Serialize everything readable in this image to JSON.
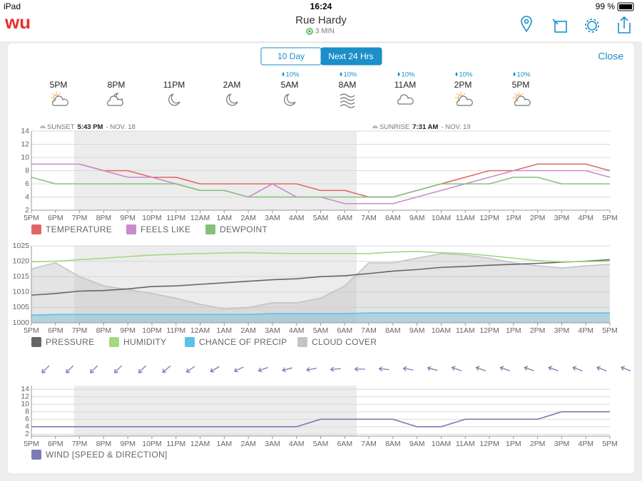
{
  "status_bar": {
    "device": "iPad",
    "time": "16:24",
    "battery": "99 %"
  },
  "header": {
    "logo": "wu",
    "location": "Rue Hardy",
    "updated": "3 MIN"
  },
  "tabs": {
    "options": [
      "10 Day",
      "Next 24 Hrs"
    ],
    "close": "Close"
  },
  "forecast": [
    {
      "time": "5PM"
    },
    {
      "time": "8PM"
    },
    {
      "time": "11PM"
    },
    {
      "time": "2AM"
    },
    {
      "time": "5AM",
      "precip": "10%"
    },
    {
      "time": "8AM",
      "precip": "10%"
    },
    {
      "time": "11AM",
      "precip": "10%"
    },
    {
      "time": "2PM",
      "precip": "10%"
    },
    {
      "time": "5PM",
      "precip": "10%"
    }
  ],
  "annotations": [
    {
      "label": "SUNSET",
      "time": "5:43 PM",
      "date": "- NOV. 18"
    },
    {
      "label": "SUNRISE",
      "time": "7:31 AM",
      "date": "- NOV. 19"
    }
  ],
  "chart_data": [
    {
      "type": "line",
      "categories": [
        "5PM",
        "6PM",
        "7PM",
        "8PM",
        "9PM",
        "10PM",
        "11PM",
        "12AM",
        "1AM",
        "2AM",
        "3AM",
        "4AM",
        "5AM",
        "6AM",
        "7AM",
        "8AM",
        "9AM",
        "10AM",
        "11AM",
        "12PM",
        "1PM",
        "2PM",
        "3PM",
        "4PM",
        "5PM"
      ],
      "series": [
        {
          "name": "TEMPERATURE",
          "color": "#e06666",
          "values": [
            9,
            9,
            9,
            8,
            8,
            7,
            7,
            6,
            6,
            6,
            6,
            6,
            5,
            5,
            4,
            4,
            5,
            6,
            7,
            8,
            8,
            9,
            9,
            9,
            8
          ]
        },
        {
          "name": "FEELS LIKE",
          "color": "#c98bc9",
          "values": [
            9,
            9,
            9,
            8,
            7,
            7,
            6,
            5,
            5,
            4,
            6,
            4,
            4,
            3,
            3,
            3,
            4,
            5,
            6,
            7,
            8,
            8,
            8,
            8,
            7
          ]
        },
        {
          "name": "DEWPOINT",
          "color": "#86c07c",
          "values": [
            7,
            6,
            6,
            6,
            6,
            6,
            6,
            5,
            5,
            4,
            4,
            4,
            4,
            4,
            4,
            4,
            5,
            6,
            6,
            6,
            7,
            7,
            6,
            6,
            6
          ]
        }
      ],
      "ylim": [
        2,
        14
      ],
      "yticks": [
        2,
        4,
        6,
        8,
        10,
        12,
        14
      ],
      "grid": true
    },
    {
      "type": "line",
      "categories": [
        "5PM",
        "6PM",
        "7PM",
        "8PM",
        "9PM",
        "10PM",
        "11PM",
        "12AM",
        "1AM",
        "2AM",
        "3AM",
        "4AM",
        "5AM",
        "6AM",
        "7AM",
        "8AM",
        "9AM",
        "10AM",
        "11AM",
        "12PM",
        "1PM",
        "2PM",
        "3PM",
        "4PM",
        "5PM"
      ],
      "series": [
        {
          "name": "PRESSURE",
          "color": "#666666",
          "values": [
            1009,
            1009.5,
            1010.3,
            1010.5,
            1011,
            1011.8,
            1012,
            1012.5,
            1013,
            1013.5,
            1014,
            1014.3,
            1015,
            1015.3,
            1016,
            1016.8,
            1017.3,
            1018,
            1018.3,
            1018.7,
            1019,
            1019.3,
            1019.7,
            1020,
            1020.5
          ]
        },
        {
          "name": "HUMIDITY",
          "color": "#a6d87f",
          "values": [
            1019.8,
            1020,
            1020.5,
            1021,
            1021.5,
            1022,
            1022.3,
            1022.5,
            1022.7,
            1022.8,
            1022.6,
            1022.5,
            1022.5,
            1022.5,
            1022.5,
            1023,
            1023.2,
            1022.8,
            1022.5,
            1021.8,
            1021,
            1020.2,
            1019.8,
            1019.9,
            1020
          ]
        },
        {
          "name": "CHANCE OF PRECIP",
          "color": "#5bc2e7",
          "fill": true,
          "values": [
            1002.5,
            1002.7,
            1002.7,
            1002.7,
            1002.7,
            1002.7,
            1002.7,
            1002.7,
            1002.7,
            1002.7,
            1003,
            1003,
            1003,
            1003,
            1003.2,
            1003.2,
            1003.2,
            1003.2,
            1003.2,
            1003.2,
            1003.2,
            1003.2,
            1003.2,
            1003.2,
            1003.2
          ]
        },
        {
          "name": "CLOUD COVER",
          "color": "#c4c4c4",
          "fill": true,
          "values": [
            1017.5,
            1019.5,
            1015,
            1012,
            1010.8,
            1009.5,
            1008,
            1006,
            1004.5,
            1005,
            1006.5,
            1006.5,
            1008,
            1012,
            1019.5,
            1019.5,
            1021,
            1022.5,
            1022,
            1021,
            1019.5,
            1018.5,
            1017.8,
            1018.5,
            1019
          ]
        }
      ],
      "ylim": [
        1000,
        1025
      ],
      "yticks": [
        1000,
        1005,
        1010,
        1015,
        1020,
        1025
      ],
      "grid": true
    },
    {
      "type": "line",
      "categories": [
        "5PM",
        "6PM",
        "7PM",
        "8PM",
        "9PM",
        "10PM",
        "11PM",
        "12AM",
        "1AM",
        "2AM",
        "3AM",
        "4AM",
        "5AM",
        "6AM",
        "7AM",
        "8AM",
        "9AM",
        "10AM",
        "11AM",
        "12PM",
        "1PM",
        "2PM",
        "3PM",
        "4PM",
        "5PM"
      ],
      "series": [
        {
          "name": "WIND [SPEED & DIRECTION]",
          "color": "#7b7bb5",
          "values": [
            4,
            4,
            4,
            4,
            4,
            4,
            4,
            4,
            4,
            4,
            4,
            4,
            6,
            6,
            6,
            6,
            4,
            4,
            6,
            6,
            6,
            6,
            8,
            8,
            8
          ]
        }
      ],
      "direction_deg": [
        225,
        225,
        225,
        225,
        225,
        230,
        235,
        240,
        245,
        250,
        255,
        260,
        265,
        270,
        275,
        280,
        285,
        290,
        290,
        290,
        290,
        290,
        290,
        290,
        290
      ],
      "ylim": [
        1.5,
        15
      ],
      "yticks": [
        2,
        4,
        6,
        8,
        10,
        12,
        14
      ],
      "grid": true
    }
  ]
}
